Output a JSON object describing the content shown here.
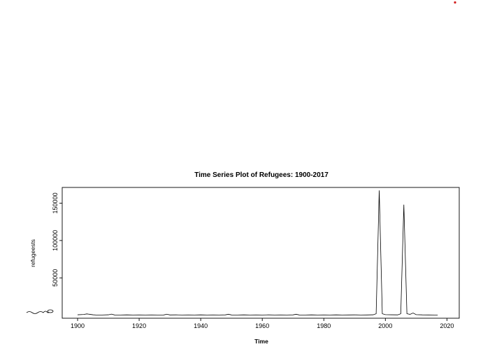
{
  "chart_data": {
    "type": "line",
    "title": "Time Series Plot of Refugees: 1900-2017",
    "xlabel": "Time",
    "ylabel": "refugeests",
    "xlim": [
      1895,
      2024
    ],
    "ylim": [
      -4000,
      171000
    ],
    "x_ticks": [
      1900,
      1920,
      1940,
      1960,
      1980,
      2000,
      2020
    ],
    "y_ticks": [
      50000,
      100000,
      150000
    ],
    "series": [
      {
        "x": [
          1900,
          1902,
          1903,
          1905,
          1906,
          1908,
          1910,
          1911,
          1912,
          1914,
          1916,
          1918,
          1920,
          1922,
          1924,
          1926,
          1928,
          1929,
          1930,
          1932,
          1934,
          1936,
          1938,
          1940,
          1942,
          1944,
          1946,
          1948,
          1949,
          1950,
          1952,
          1954,
          1956,
          1958,
          1960,
          1962,
          1964,
          1966,
          1968,
          1970,
          1971,
          1972,
          1974,
          1976,
          1978,
          1980,
          1982,
          1984,
          1986,
          1988,
          1990,
          1992,
          1994,
          1996,
          1997,
          1998,
          1999,
          2000,
          2002,
          2004,
          2005,
          2006,
          2007,
          2008,
          2009,
          2010,
          2012,
          2014,
          2016,
          2017
        ],
        "values": [
          600,
          1000,
          1800,
          600,
          300,
          300,
          600,
          1500,
          400,
          300,
          500,
          300,
          400,
          300,
          400,
          300,
          400,
          1400,
          400,
          500,
          300,
          400,
          300,
          500,
          300,
          400,
          300,
          500,
          1300,
          400,
          300,
          500,
          300,
          400,
          300,
          500,
          300,
          400,
          300,
          500,
          1300,
          400,
          300,
          500,
          300,
          400,
          300,
          500,
          300,
          400,
          500,
          300,
          400,
          600,
          2000,
          167000,
          2000,
          800,
          600,
          500,
          2000,
          148000,
          2000,
          1200,
          3000,
          800,
          500,
          400,
          300,
          300
        ]
      }
    ]
  }
}
